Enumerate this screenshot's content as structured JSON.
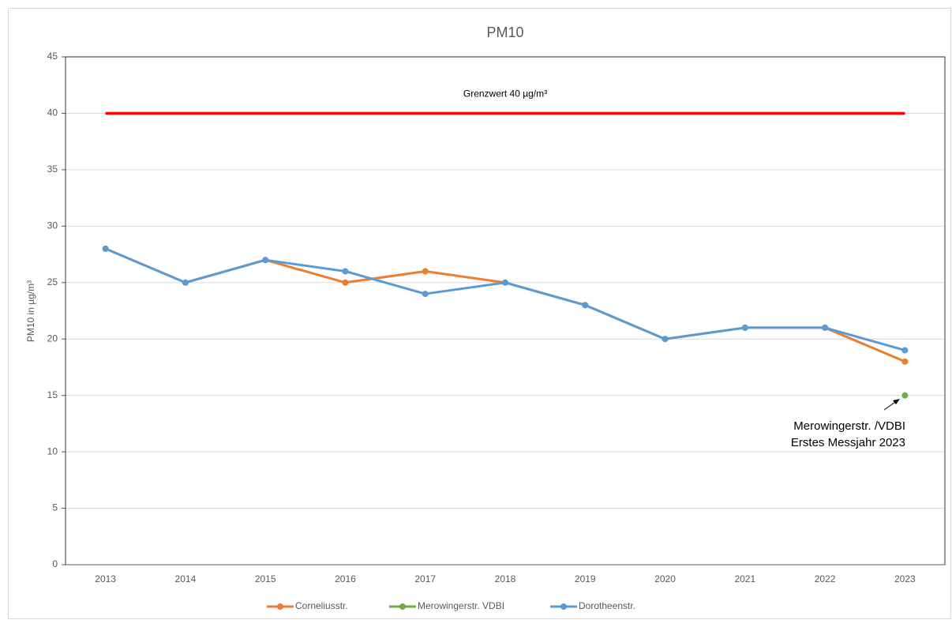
{
  "chart_data": {
    "type": "line",
    "title": "PM10",
    "y_label": "PM10 in µg/m³",
    "categories": [
      "2013",
      "2014",
      "2015",
      "2016",
      "2017",
      "2018",
      "2019",
      "2020",
      "2021",
      "2022",
      "2023"
    ],
    "series": [
      {
        "name": "Corneliusstr.",
        "color": "#ed7d31",
        "values": [
          28,
          25,
          27,
          25,
          26,
          25,
          23,
          20,
          21,
          21,
          18
        ]
      },
      {
        "name": "Merowingerstr. VDBI",
        "color": "#70ad47",
        "values": [
          null,
          null,
          null,
          null,
          null,
          null,
          null,
          null,
          null,
          null,
          15
        ]
      },
      {
        "name": "Dorotheenstr.",
        "color": "#5b9bd5",
        "values": [
          28,
          25,
          27,
          26,
          24,
          25,
          23,
          20,
          21,
          21,
          19
        ]
      }
    ],
    "limit_line": {
      "value": 40,
      "color": "#ff0000",
      "label": "Grenzwert 40 µg/m³"
    },
    "annotation": [
      "Merowingerstr. /VDBI",
      "Erstes Messjahr 2023"
    ],
    "ylim": [
      0,
      45
    ],
    "yticks": [
      0,
      5,
      10,
      15,
      20,
      25,
      30,
      35,
      40,
      45
    ],
    "grid": true,
    "legend": "bottom"
  }
}
